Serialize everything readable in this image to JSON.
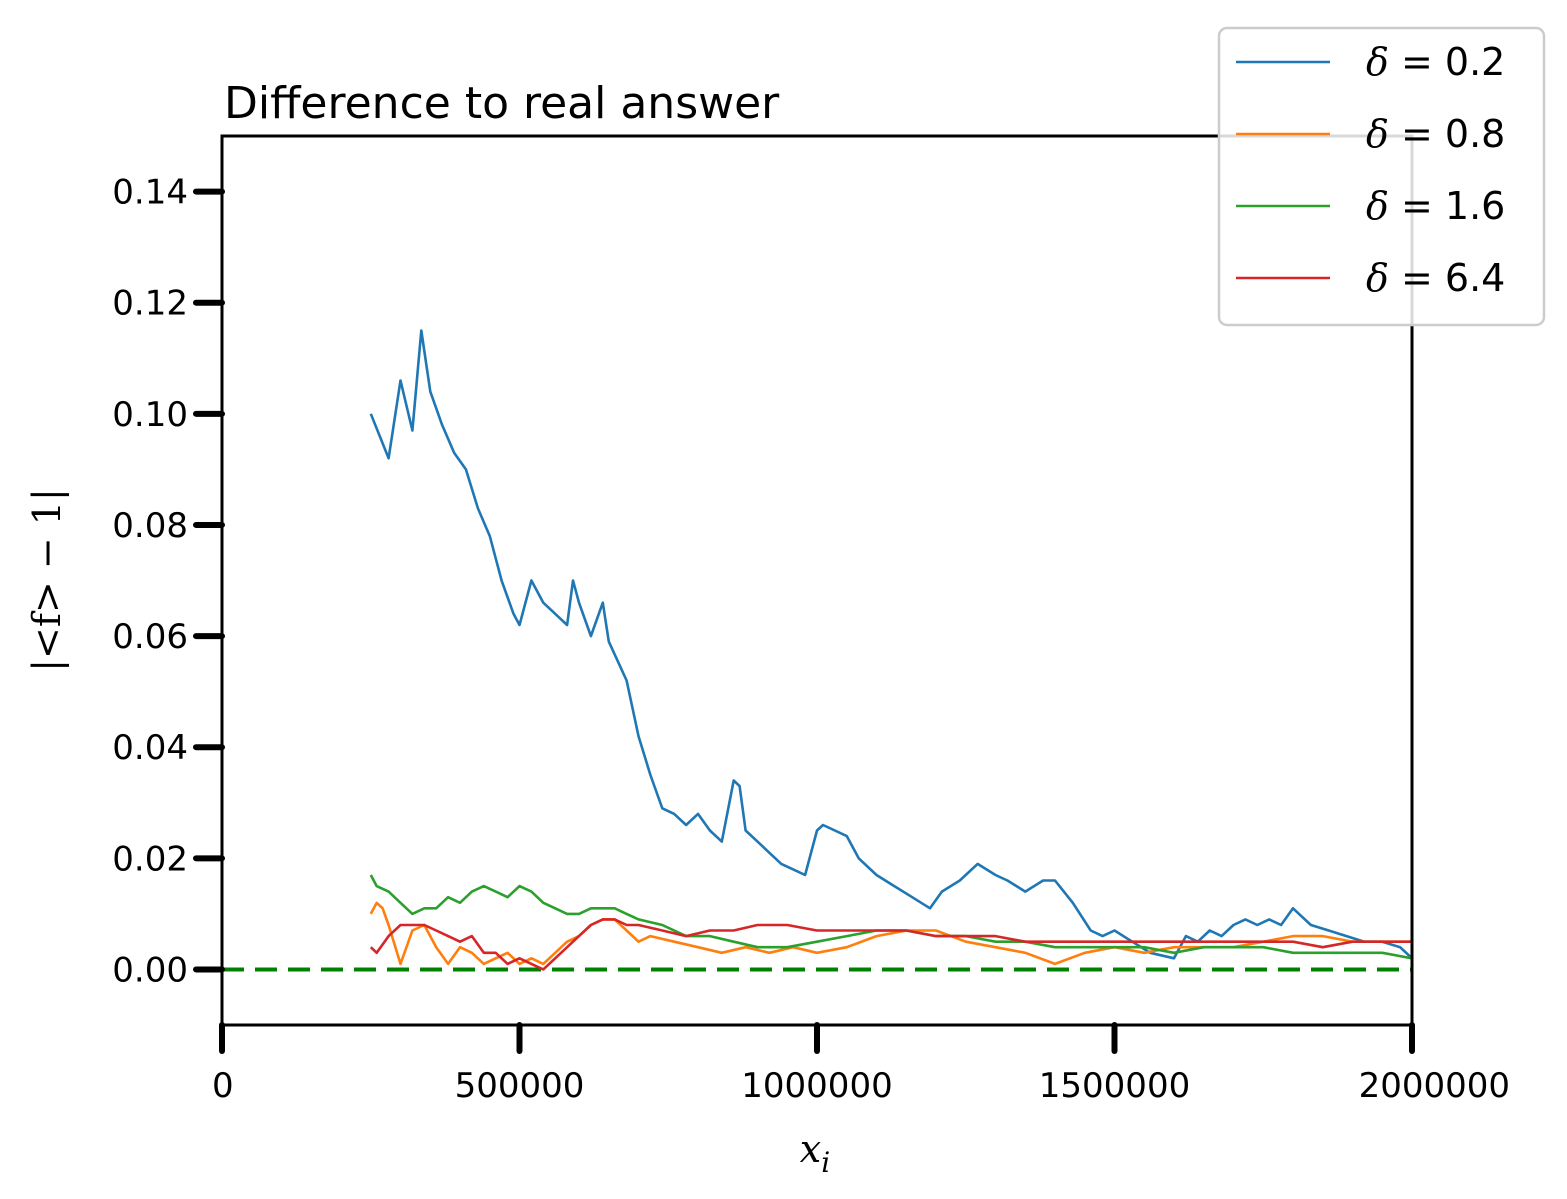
{
  "chart_data": {
    "type": "line",
    "title": "Difference to real answer",
    "xlabel": "x",
    "xlabel_sub": "i",
    "ylabel": "|<f> − 1|",
    "xlim": [
      0,
      2000000
    ],
    "ylim": [
      -0.01,
      0.15
    ],
    "xticks": [
      0,
      500000,
      1000000,
      1500000,
      2000000
    ],
    "xtick_labels": [
      "0",
      "500000",
      "1000000",
      "1500000",
      "2000000"
    ],
    "yticks": [
      0.0,
      0.02,
      0.04,
      0.06,
      0.08,
      0.1,
      0.12,
      0.14
    ],
    "ytick_labels": [
      "0.00",
      "0.02",
      "0.04",
      "0.06",
      "0.08",
      "0.10",
      "0.12",
      "0.14"
    ],
    "grid": false,
    "legend_position": "top-right",
    "series": [
      {
        "name": "δ = 0.2",
        "legend_symbol": "δ",
        "legend_value": "= 0.2",
        "color": "#1f77b4",
        "x": [
          250000,
          265000,
          280000,
          300000,
          320000,
          335000,
          350000,
          370000,
          390000,
          410000,
          430000,
          450000,
          470000,
          490000,
          500000,
          520000,
          540000,
          560000,
          580000,
          590000,
          600000,
          620000,
          640000,
          650000,
          680000,
          700000,
          720000,
          740000,
          760000,
          780000,
          800000,
          820000,
          840000,
          860000,
          870000,
          880000,
          900000,
          920000,
          940000,
          960000,
          980000,
          1000000,
          1010000,
          1030000,
          1050000,
          1070000,
          1100000,
          1130000,
          1160000,
          1190000,
          1210000,
          1240000,
          1270000,
          1300000,
          1320000,
          1350000,
          1380000,
          1400000,
          1430000,
          1460000,
          1480000,
          1500000,
          1530000,
          1560000,
          1600000,
          1620000,
          1640000,
          1660000,
          1680000,
          1700000,
          1720000,
          1740000,
          1760000,
          1780000,
          1800000,
          1810000,
          1830000,
          1860000,
          1890000,
          1920000,
          1950000,
          1980000,
          2000000
        ],
        "y": [
          0.1,
          0.096,
          0.092,
          0.106,
          0.097,
          0.115,
          0.104,
          0.098,
          0.093,
          0.09,
          0.083,
          0.078,
          0.07,
          0.064,
          0.062,
          0.07,
          0.066,
          0.064,
          0.062,
          0.07,
          0.066,
          0.06,
          0.066,
          0.059,
          0.052,
          0.042,
          0.035,
          0.029,
          0.028,
          0.026,
          0.028,
          0.025,
          0.023,
          0.034,
          0.033,
          0.025,
          0.023,
          0.021,
          0.019,
          0.018,
          0.017,
          0.025,
          0.026,
          0.025,
          0.024,
          0.02,
          0.017,
          0.015,
          0.013,
          0.011,
          0.014,
          0.016,
          0.019,
          0.017,
          0.016,
          0.014,
          0.016,
          0.016,
          0.012,
          0.007,
          0.006,
          0.007,
          0.005,
          0.003,
          0.002,
          0.006,
          0.005,
          0.007,
          0.006,
          0.008,
          0.009,
          0.008,
          0.009,
          0.008,
          0.011,
          0.01,
          0.008,
          0.007,
          0.006,
          0.005,
          0.005,
          0.004,
          0.002
        ]
      },
      {
        "name": "δ = 0.8",
        "legend_symbol": "δ",
        "legend_value": "= 0.8",
        "color": "#ff7f0e",
        "x": [
          250000,
          260000,
          270000,
          280000,
          300000,
          320000,
          340000,
          360000,
          380000,
          400000,
          420000,
          440000,
          460000,
          480000,
          500000,
          520000,
          540000,
          560000,
          580000,
          600000,
          620000,
          640000,
          660000,
          680000,
          700000,
          720000,
          760000,
          800000,
          840000,
          880000,
          920000,
          960000,
          1000000,
          1050000,
          1100000,
          1150000,
          1200000,
          1250000,
          1300000,
          1350000,
          1400000,
          1450000,
          1500000,
          1550000,
          1600000,
          1650000,
          1700000,
          1750000,
          1800000,
          1850000,
          1900000,
          1950000,
          2000000
        ],
        "y": [
          0.01,
          0.012,
          0.011,
          0.008,
          0.001,
          0.007,
          0.008,
          0.004,
          0.001,
          0.004,
          0.003,
          0.001,
          0.002,
          0.003,
          0.001,
          0.002,
          0.001,
          0.003,
          0.005,
          0.006,
          0.008,
          0.009,
          0.009,
          0.007,
          0.005,
          0.006,
          0.005,
          0.004,
          0.003,
          0.004,
          0.003,
          0.004,
          0.003,
          0.004,
          0.006,
          0.007,
          0.007,
          0.005,
          0.004,
          0.003,
          0.001,
          0.003,
          0.004,
          0.003,
          0.004,
          0.004,
          0.004,
          0.005,
          0.006,
          0.006,
          0.005,
          0.005,
          0.005
        ]
      },
      {
        "name": "δ = 1.6",
        "legend_symbol": "δ",
        "legend_value": "= 1.6",
        "color": "#2ca02c",
        "x": [
          250000,
          260000,
          280000,
          300000,
          320000,
          340000,
          360000,
          380000,
          400000,
          420000,
          440000,
          460000,
          480000,
          500000,
          520000,
          540000,
          560000,
          580000,
          600000,
          620000,
          640000,
          660000,
          680000,
          700000,
          740000,
          780000,
          820000,
          860000,
          900000,
          950000,
          1000000,
          1050000,
          1100000,
          1150000,
          1200000,
          1250000,
          1300000,
          1350000,
          1400000,
          1450000,
          1500000,
          1550000,
          1600000,
          1650000,
          1700000,
          1750000,
          1800000,
          1850000,
          1900000,
          1950000,
          2000000
        ],
        "y": [
          0.017,
          0.015,
          0.014,
          0.012,
          0.01,
          0.011,
          0.011,
          0.013,
          0.012,
          0.014,
          0.015,
          0.014,
          0.013,
          0.015,
          0.014,
          0.012,
          0.011,
          0.01,
          0.01,
          0.011,
          0.011,
          0.011,
          0.01,
          0.009,
          0.008,
          0.006,
          0.006,
          0.005,
          0.004,
          0.004,
          0.005,
          0.006,
          0.007,
          0.007,
          0.006,
          0.006,
          0.005,
          0.005,
          0.004,
          0.004,
          0.004,
          0.004,
          0.003,
          0.004,
          0.004,
          0.004,
          0.003,
          0.003,
          0.003,
          0.003,
          0.002
        ]
      },
      {
        "name": "δ = 6.4",
        "legend_symbol": "δ",
        "legend_value": "= 6.4",
        "color": "#d62728",
        "x": [
          250000,
          260000,
          280000,
          300000,
          320000,
          340000,
          360000,
          380000,
          400000,
          420000,
          440000,
          460000,
          480000,
          500000,
          520000,
          540000,
          560000,
          580000,
          600000,
          620000,
          640000,
          660000,
          680000,
          700000,
          740000,
          780000,
          820000,
          860000,
          900000,
          950000,
          1000000,
          1050000,
          1100000,
          1150000,
          1200000,
          1250000,
          1300000,
          1350000,
          1400000,
          1450000,
          1500000,
          1550000,
          1600000,
          1650000,
          1700000,
          1750000,
          1800000,
          1850000,
          1900000,
          1950000,
          2000000
        ],
        "y": [
          0.004,
          0.003,
          0.006,
          0.008,
          0.008,
          0.008,
          0.007,
          0.006,
          0.005,
          0.006,
          0.003,
          0.003,
          0.001,
          0.002,
          0.001,
          0.0,
          0.002,
          0.004,
          0.006,
          0.008,
          0.009,
          0.009,
          0.008,
          0.008,
          0.007,
          0.006,
          0.007,
          0.007,
          0.008,
          0.008,
          0.007,
          0.007,
          0.007,
          0.007,
          0.006,
          0.006,
          0.006,
          0.005,
          0.005,
          0.005,
          0.005,
          0.005,
          0.005,
          0.005,
          0.005,
          0.005,
          0.005,
          0.004,
          0.005,
          0.005,
          0.005
        ]
      }
    ],
    "reference_line": {
      "color": "#008000",
      "y": 0
    }
  }
}
